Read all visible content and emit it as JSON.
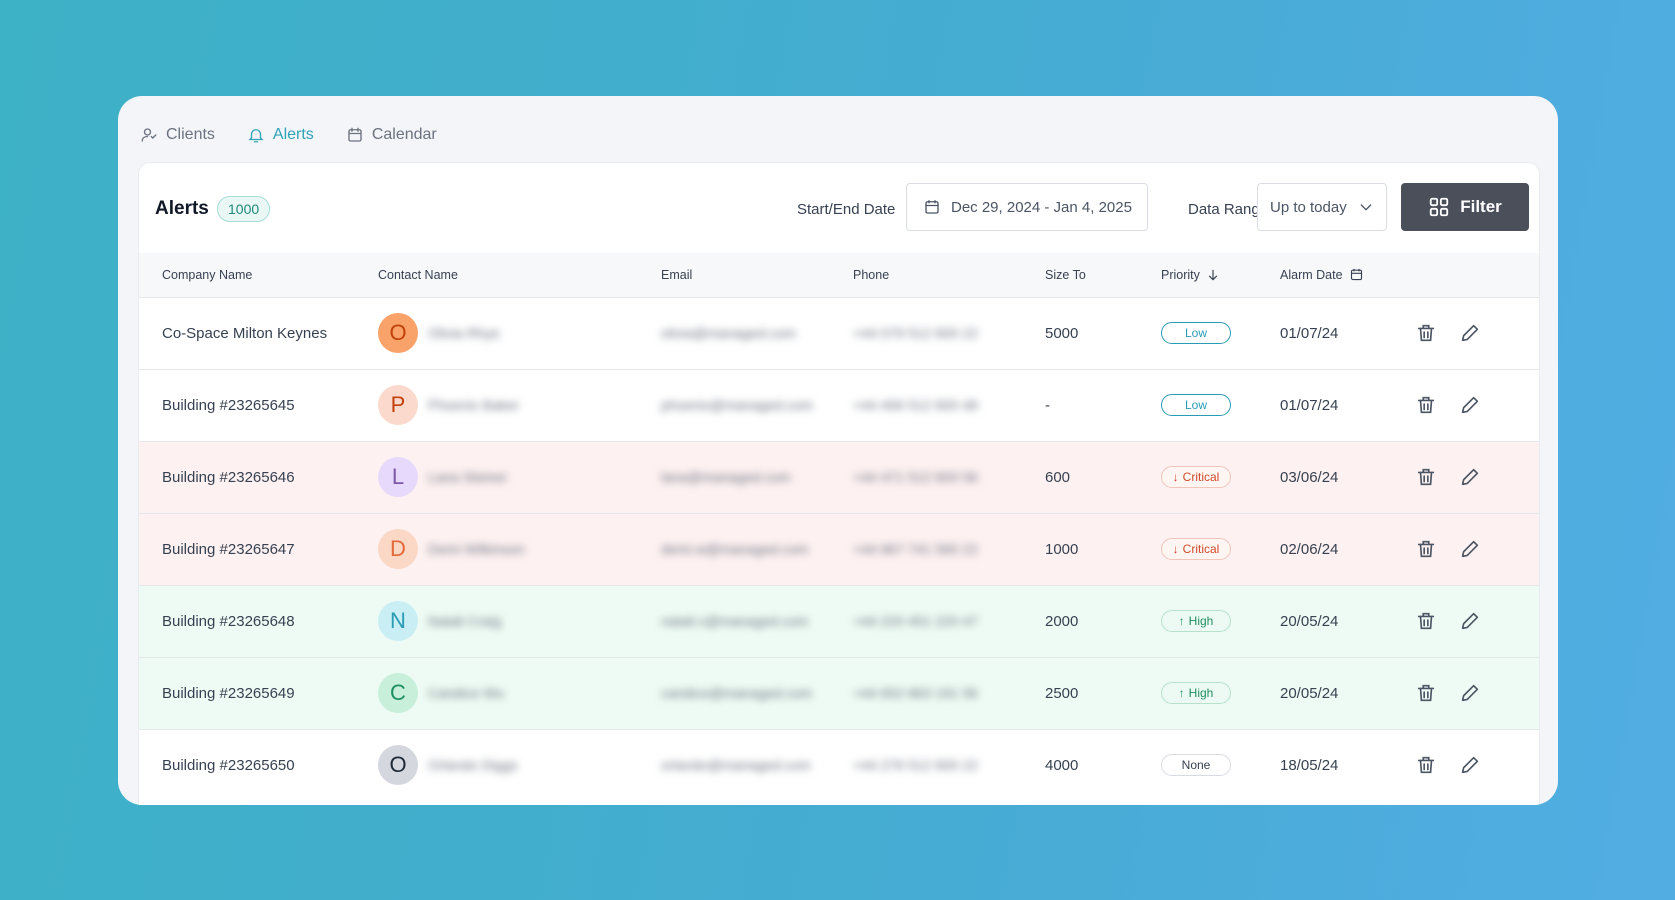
{
  "tabs": [
    {
      "label": "Clients",
      "icon": "users-icon",
      "active": false
    },
    {
      "label": "Alerts",
      "icon": "bell-icon",
      "active": true
    },
    {
      "label": "Calendar",
      "icon": "calendar-icon",
      "active": false
    }
  ],
  "header": {
    "title": "Alerts",
    "count": "1000",
    "date_label": "Start/End Date",
    "date_value": "Dec 29, 2024 - Jan 4, 2025",
    "range_label": "Data Range",
    "range_value": "Up to today",
    "filter_label": "Filter"
  },
  "columns": {
    "company": "Company Name",
    "contact": "Contact Name",
    "email": "Email",
    "phone": "Phone",
    "size": "Size To",
    "priority": "Priority",
    "alarm": "Alarm Date"
  },
  "rows": [
    {
      "company": "Co-Space Milton Keynes",
      "initial": "O",
      "contact": "Olivia Rhye",
      "email": "olivia@managed.com",
      "phone": "+44 079 512 600 22",
      "size": "5000",
      "priority": "Low",
      "date": "01/07/24",
      "avatar_bg": "#f9a26a",
      "avatar_fg": "#c2410c",
      "row_tone": "none"
    },
    {
      "company": "Building #23265645",
      "initial": "P",
      "contact": "Phoenix Baker",
      "email": "phoenix@managed.com",
      "phone": "+44 456 512 600 48",
      "size": "-",
      "priority": "Low",
      "date": "01/07/24",
      "avatar_bg": "#fbd9cc",
      "avatar_fg": "#c2410c",
      "row_tone": "none"
    },
    {
      "company": "Building #23265646",
      "initial": "L",
      "contact": "Lana Steiner",
      "email": "lana@managed.com",
      "phone": "+44 471 512 600 56",
      "size": "600",
      "priority": "Critical",
      "date": "03/06/24",
      "avatar_bg": "#e6d9fb",
      "avatar_fg": "#7c5aa6",
      "row_tone": "critical"
    },
    {
      "company": "Building #23265647",
      "initial": "D",
      "contact": "Demi Wilkinson",
      "email": "demi.w@managed.com",
      "phone": "+44 867 741 560 22",
      "size": "1000",
      "priority": "Critical",
      "date": "02/06/24",
      "avatar_bg": "#fbd7c5",
      "avatar_fg": "#e2693a",
      "row_tone": "critical"
    },
    {
      "company": "Building #23265648",
      "initial": "N",
      "contact": "Natali Craig",
      "email": "natali.c@managed.com",
      "phone": "+44 220 451 220 47",
      "size": "2000",
      "priority": "High",
      "date": "20/05/24",
      "avatar_bg": "#c9eef4",
      "avatar_fg": "#2a9bb4",
      "row_tone": "high"
    },
    {
      "company": "Building #23265649",
      "initial": "C",
      "contact": "Candice Wu",
      "email": "candice@managed.com",
      "phone": "+44 652 863 191 56",
      "size": "2500",
      "priority": "High",
      "date": "20/05/24",
      "avatar_bg": "#c7efd9",
      "avatar_fg": "#1f8f62",
      "row_tone": "high"
    },
    {
      "company": "Building #23265650",
      "initial": "O",
      "contact": "Orlando Diggs",
      "email": "orlando@managed.com",
      "phone": "+44 276 512 600 22",
      "size": "4000",
      "priority": "None",
      "date": "18/05/24",
      "avatar_bg": "#d4d8de",
      "avatar_fg": "#1f2937",
      "row_tone": "none"
    }
  ]
}
